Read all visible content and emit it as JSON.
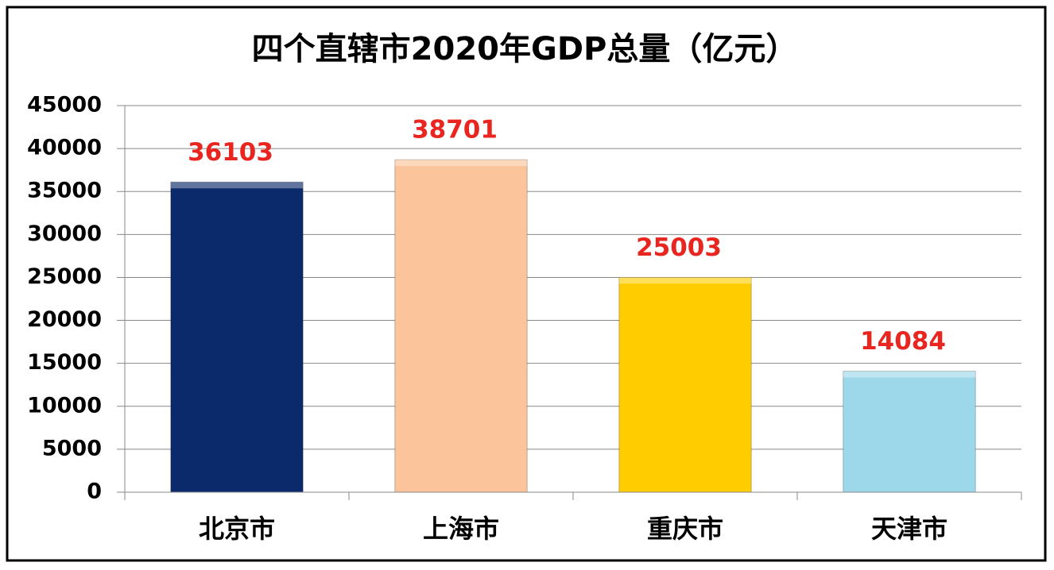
{
  "chart_data": {
    "type": "bar",
    "title": "四个直辖市2020年GDP总量（亿元）",
    "categories": [
      "北京市",
      "上海市",
      "重庆市",
      "天津市"
    ],
    "values": [
      36103,
      38701,
      25003,
      14084
    ],
    "colors": [
      "#0b2a6b",
      "#fbc49a",
      "#ffcc00",
      "#9dd8ea"
    ],
    "value_label_color": "#e8251f",
    "ylim": [
      0,
      45000
    ],
    "yticks": [
      0,
      5000,
      10000,
      15000,
      20000,
      25000,
      30000,
      35000,
      40000,
      45000
    ],
    "grid": true
  }
}
